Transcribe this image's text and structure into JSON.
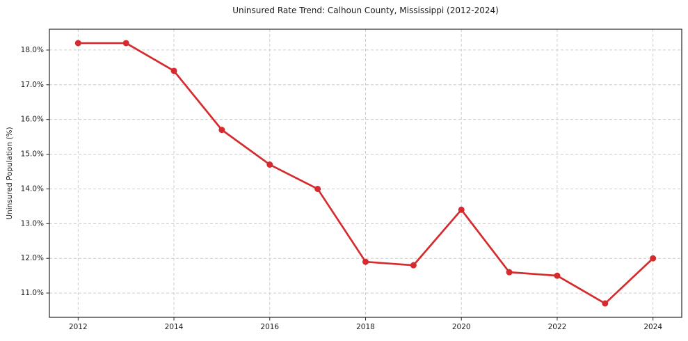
{
  "chart_data": {
    "type": "line",
    "title": "Uninsured Rate Trend: Calhoun County, Mississippi (2012-2024)",
    "xlabel": "",
    "ylabel": "Uninsured Population (%)",
    "x": [
      2012,
      2013,
      2014,
      2015,
      2016,
      2017,
      2018,
      2019,
      2020,
      2021,
      2022,
      2023,
      2024
    ],
    "values": [
      18.2,
      18.2,
      17.4,
      15.7,
      14.7,
      14.0,
      11.9,
      11.8,
      13.4,
      11.6,
      11.5,
      10.7,
      12.0
    ],
    "xticks": [
      2012,
      2014,
      2016,
      2018,
      2020,
      2022,
      2024
    ],
    "yticks": [
      11.0,
      12.0,
      13.0,
      14.0,
      15.0,
      16.0,
      17.0,
      18.0
    ],
    "ytick_suffix": "%",
    "xlim": [
      2011.4,
      2024.6
    ],
    "ylim": [
      10.3,
      18.6
    ],
    "grid": true,
    "legend": "none",
    "line_color": "#d62b2e",
    "marker_color": "#d62b2e",
    "grid_color": "#cccccc",
    "spine_color": "#262626",
    "background_color": "#ffffff"
  }
}
